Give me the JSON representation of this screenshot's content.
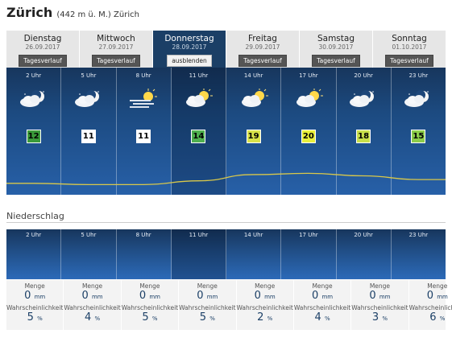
{
  "header": {
    "city": "Zürich",
    "subtitle": "(442 m ü. M.) Zürich"
  },
  "days": [
    {
      "name": "Dienstag",
      "date": "26.09.2017",
      "button": "Tagesverlauf",
      "active": false
    },
    {
      "name": "Mittwoch",
      "date": "27.09.2017",
      "button": "Tagesverlauf",
      "active": false
    },
    {
      "name": "Donnerstag",
      "date": "28.09.2017",
      "button": "ausblenden",
      "active": true
    },
    {
      "name": "Freitag",
      "date": "29.09.2017",
      "button": "Tagesverlauf",
      "active": false
    },
    {
      "name": "Samstag",
      "date": "30.09.2017",
      "button": "Tagesverlauf",
      "active": false
    },
    {
      "name": "Sonntag",
      "date": "01.10.2017",
      "button": "Tagesverlauf",
      "active": false
    }
  ],
  "hours": [
    {
      "time": "2 Uhr",
      "icon": "moon-cloud-icon",
      "temp": "12",
      "temp_color": "#3a9a3a"
    },
    {
      "time": "5 Uhr",
      "icon": "moon-cloud-icon",
      "temp": "11",
      "temp_color": "#ffffff"
    },
    {
      "time": "8 Uhr",
      "icon": "sun-fog-icon",
      "temp": "11",
      "temp_color": "#ffffff"
    },
    {
      "time": "11 Uhr",
      "icon": "sun-cloud-icon",
      "temp": "14",
      "temp_color": "#4fb04f"
    },
    {
      "time": "14 Uhr",
      "icon": "sun-cloud-icon",
      "temp": "19",
      "temp_color": "#d8e24a"
    },
    {
      "time": "17 Uhr",
      "icon": "sun-cloud-icon",
      "temp": "20",
      "temp_color": "#e8ef3c"
    },
    {
      "time": "20 Uhr",
      "icon": "moon-cloud-icon",
      "temp": "18",
      "temp_color": "#c8e04a"
    },
    {
      "time": "23 Uhr",
      "icon": "moon-cloud-icon",
      "temp": "15",
      "temp_color": "#8ccc4a"
    }
  ],
  "precipitation": {
    "title": "Niederschlag",
    "amount_label": "Menge",
    "amount_unit": "mm",
    "prob_label": "Wahrscheinlichkeit",
    "prob_unit": "%",
    "items": [
      {
        "time": "2 Uhr",
        "amount": "0",
        "prob": "5"
      },
      {
        "time": "5 Uhr",
        "amount": "0",
        "prob": "4"
      },
      {
        "time": "8 Uhr",
        "amount": "0",
        "prob": "5"
      },
      {
        "time": "11 Uhr",
        "amount": "0",
        "prob": "5"
      },
      {
        "time": "14 Uhr",
        "amount": "0",
        "prob": "2"
      },
      {
        "time": "17 Uhr",
        "amount": "0",
        "prob": "4"
      },
      {
        "time": "20 Uhr",
        "amount": "0",
        "prob": "3"
      },
      {
        "time": "23 Uhr",
        "amount": "0",
        "prob": "6"
      }
    ]
  },
  "colors": {
    "active_day": "#1b3f66",
    "curve": "#d9c84a"
  }
}
